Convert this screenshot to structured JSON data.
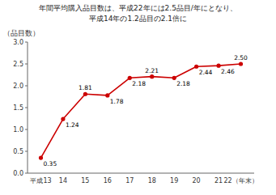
{
  "chart_data": {
    "type": "line",
    "title": "年間平均購入品目数は、平成22年には2.5品目/年にとなり、",
    "subtitle": "平成14年の1.2品目の2.1倍に",
    "y_label": "（品目数）",
    "categories": [
      "平成13",
      "14",
      "15",
      "16",
      "17",
      "18",
      "19",
      "20",
      "21",
      "22（年末）"
    ],
    "values": [
      0.35,
      1.24,
      1.81,
      1.78,
      2.18,
      2.21,
      2.18,
      2.44,
      2.46,
      2.5
    ],
    "value_labels": [
      "0.35",
      "1.24",
      "1.81",
      "1.78",
      "2.18",
      "2.21",
      "2.18",
      "2.44",
      "2.46",
      "2.50"
    ],
    "data_labels": true,
    "color": "#cc0000",
    "marker": "circle",
    "ylim": [
      0.0,
      3.0
    ],
    "yticks": [
      {
        "value": 0.0,
        "label": "0.0"
      },
      0.5,
      {
        "value": 1.0,
        "label": "1.0"
      },
      1.5,
      {
        "value": 2.0,
        "label": "2.0"
      },
      2.5,
      {
        "value": 3.0,
        "label": "3.0"
      }
    ]
  }
}
